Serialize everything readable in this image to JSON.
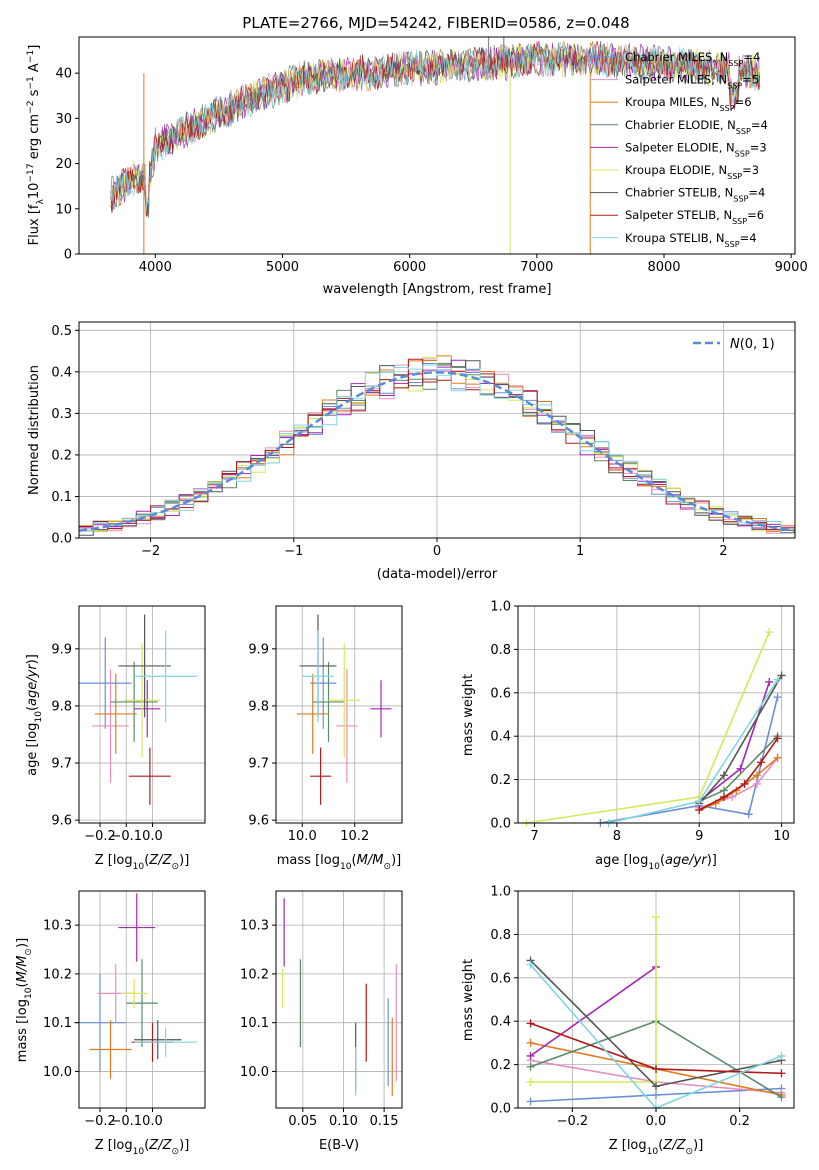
{
  "figure": {
    "title": "PLATE=2766, MJD=54242, FIBERID=0586, z=0.048"
  },
  "colors": {
    "Chabrier MILES": "#6b8fd6",
    "Salpeter MILES": "#e58fc0",
    "Kroupa MILES": "#e07a1f",
    "Chabrier ELODIE": "#5b8c6a",
    "Salpeter ELODIE": "#a626b5",
    "Kroupa ELODIE": "#d6e85a",
    "Chabrier STELIB": "#555555",
    "Salpeter STELIB": "#b01a1a",
    "Kroupa STELIB": "#7fd6e0",
    "normal": "#5b8ad6"
  },
  "chart_data": [
    {
      "id": "spectrum",
      "type": "line",
      "xlabel": "wavelength [Angstrom, rest frame]",
      "ylabel": "Flux [f_λ10^-17 erg cm^-2 s^-1 A^-1]",
      "xlim": [
        3400,
        9030
      ],
      "ylim": [
        0,
        48
      ],
      "xticks": [
        4000,
        5000,
        6000,
        7000,
        8000,
        9000
      ],
      "yticks": [
        0,
        10,
        20,
        30,
        40
      ],
      "grid": false,
      "legend": "top-right",
      "legend_labels": [
        "Chabrier MILES, N_SSP=4",
        "Salpeter MILES, N_SSP=5",
        "Kroupa MILES, N_SSP=6",
        "Chabrier ELODIE, N_SSP=4",
        "Salpeter ELODIE, N_SSP=3",
        "Kroupa ELODIE, N_SSP=3",
        "Chabrier STELIB, N_SSP=4",
        "Salpeter STELIB, N_SSP=6",
        "Kroupa STELIB, N_SSP=4"
      ],
      "series_keys": [
        "Chabrier MILES",
        "Salpeter MILES",
        "Kroupa MILES",
        "Chabrier ELODIE",
        "Salpeter ELODIE",
        "Kroupa ELODIE",
        "Chabrier STELIB",
        "Salpeter STELIB",
        "Kroupa STELIB"
      ],
      "continuum_x": [
        3650,
        3850,
        3950,
        4000,
        4200,
        4500,
        4800,
        5200,
        5600,
        6000,
        6500,
        7000,
        7500,
        8000,
        8500,
        8750
      ],
      "continuum_y": [
        13,
        17,
        16,
        24,
        27,
        31,
        35,
        39,
        40,
        41,
        42,
        43,
        43,
        42,
        41,
        40
      ]
    },
    {
      "id": "histogram",
      "type": "line",
      "xlabel": "(data-model)/error",
      "ylabel": "Normed distribution",
      "xlim": [
        -2.5,
        2.5
      ],
      "ylim": [
        0,
        0.52
      ],
      "xticks": [
        -2,
        -1,
        0,
        1,
        2
      ],
      "yticks": [
        0.0,
        0.1,
        0.2,
        0.3,
        0.4,
        0.5
      ],
      "grid": true,
      "legend": "top-right",
      "legend_label": "N(0,1)",
      "bin_width": 0.1
    },
    {
      "id": "age-vs-Z",
      "type": "scatter",
      "xlabel": "Z [log10(Z/Z⊙)]",
      "ylabel": "age [log10(age/yr)]",
      "xlim": [
        -0.28,
        0.2
      ],
      "ylim": [
        9.595,
        9.975
      ],
      "xticks": [
        -0.2,
        -0.1,
        0.0
      ],
      "yticks": [
        9.6,
        9.7,
        9.8,
        9.9
      ],
      "grid": true,
      "points": [
        {
          "key": "Chabrier MILES",
          "x": -0.18,
          "xerr": 0.1,
          "y": 9.84,
          "yerr": 0.08
        },
        {
          "key": "Salpeter MILES",
          "x": -0.16,
          "xerr": 0.07,
          "y": 9.765,
          "yerr": 0.1
        },
        {
          "key": "Kroupa MILES",
          "x": -0.14,
          "xerr": 0.08,
          "y": 9.786,
          "yerr": 0.07
        },
        {
          "key": "Chabrier ELODIE",
          "x": -0.07,
          "xerr": 0.09,
          "y": 9.807,
          "yerr": 0.07
        },
        {
          "key": "Salpeter ELODIE",
          "x": -0.02,
          "xerr": 0.05,
          "y": 9.795,
          "yerr": 0.05
        },
        {
          "key": "Kroupa ELODIE",
          "x": -0.04,
          "xerr": 0.07,
          "y": 9.81,
          "yerr": 0.1
        },
        {
          "key": "Chabrier STELIB",
          "x": -0.03,
          "xerr": 0.1,
          "y": 9.87,
          "yerr": 0.09
        },
        {
          "key": "Salpeter STELIB",
          "x": -0.01,
          "xerr": 0.08,
          "y": 9.677,
          "yerr": 0.05
        },
        {
          "key": "Kroupa STELIB",
          "x": 0.05,
          "xerr": 0.12,
          "y": 9.852,
          "yerr": 0.08
        }
      ]
    },
    {
      "id": "age-vs-mass",
      "type": "scatter",
      "xlabel": "mass [log10(M/M⊙)]",
      "ylabel": "",
      "xlim": [
        9.9,
        10.38
      ],
      "ylim": [
        9.595,
        9.975
      ],
      "xticks": [
        10.0,
        10.2
      ],
      "yticks": [
        9.6,
        9.7,
        9.8,
        9.9
      ],
      "grid": true,
      "points": [
        {
          "key": "Chabrier MILES",
          "x": 10.08,
          "xerr": 0.05,
          "y": 9.84,
          "yerr": 0.08
        },
        {
          "key": "Salpeter MILES",
          "x": 10.17,
          "xerr": 0.04,
          "y": 9.765,
          "yerr": 0.1
        },
        {
          "key": "Kroupa MILES",
          "x": 10.04,
          "xerr": 0.06,
          "y": 9.786,
          "yerr": 0.07
        },
        {
          "key": "Chabrier ELODIE",
          "x": 10.1,
          "xerr": 0.06,
          "y": 9.807,
          "yerr": 0.07
        },
        {
          "key": "Salpeter ELODIE",
          "x": 10.3,
          "xerr": 0.04,
          "y": 9.795,
          "yerr": 0.05
        },
        {
          "key": "Kroupa ELODIE",
          "x": 10.16,
          "xerr": 0.06,
          "y": 9.81,
          "yerr": 0.1
        },
        {
          "key": "Chabrier STELIB",
          "x": 10.06,
          "xerr": 0.07,
          "y": 9.87,
          "yerr": 0.09
        },
        {
          "key": "Salpeter STELIB",
          "x": 10.07,
          "xerr": 0.04,
          "y": 9.677,
          "yerr": 0.05
        },
        {
          "key": "Kroupa STELIB",
          "x": 10.06,
          "xerr": 0.06,
          "y": 9.852,
          "yerr": 0.08
        }
      ]
    },
    {
      "id": "massweight-vs-age",
      "type": "line",
      "xlabel": "age [log10(age/yr)]",
      "ylabel": "mass weight",
      "xlim": [
        6.8,
        10.15
      ],
      "ylim": [
        0,
        1.0
      ],
      "xticks": [
        7,
        8,
        9,
        10
      ],
      "yticks": [
        0.0,
        0.2,
        0.4,
        0.6,
        0.8,
        1.0
      ],
      "grid": true,
      "series": [
        {
          "key": "Chabrier MILES",
          "x": [
            7.8,
            9.0,
            9.6,
            9.95
          ],
          "y": [
            0.0,
            0.08,
            0.04,
            0.58
          ]
        },
        {
          "key": "Salpeter MILES",
          "x": [
            9.0,
            9.4,
            9.7,
            9.95
          ],
          "y": [
            0.07,
            0.12,
            0.18,
            0.3
          ]
        },
        {
          "key": "Kroupa MILES",
          "x": [
            9.0,
            9.2,
            9.45,
            9.7,
            9.95
          ],
          "y": [
            0.06,
            0.09,
            0.15,
            0.22,
            0.3
          ]
        },
        {
          "key": "Chabrier ELODIE",
          "x": [
            9.0,
            9.3,
            9.95
          ],
          "y": [
            0.1,
            0.15,
            0.4
          ]
        },
        {
          "key": "Salpeter ELODIE",
          "x": [
            9.0,
            9.5,
            9.85
          ],
          "y": [
            0.1,
            0.25,
            0.65
          ]
        },
        {
          "key": "Kroupa ELODIE",
          "x": [
            6.9,
            9.0,
            9.85
          ],
          "y": [
            0.0,
            0.12,
            0.88
          ]
        },
        {
          "key": "Chabrier STELIB",
          "x": [
            9.0,
            9.3,
            10.0
          ],
          "y": [
            0.09,
            0.22,
            0.68
          ]
        },
        {
          "key": "Salpeter STELIB",
          "x": [
            9.0,
            9.3,
            9.55,
            9.75,
            9.95
          ],
          "y": [
            0.06,
            0.12,
            0.18,
            0.28,
            0.39
          ]
        },
        {
          "key": "Kroupa STELIB",
          "x": [
            7.9,
            9.0,
            9.95
          ],
          "y": [
            0.0,
            0.1,
            0.66
          ]
        }
      ]
    },
    {
      "id": "mass-vs-Z",
      "type": "scatter",
      "xlabel": "Z [log10(Z/Z⊙)]",
      "ylabel": "mass [log10(M/M⊙)]",
      "xlim": [
        -0.28,
        0.2
      ],
      "ylim": [
        9.925,
        10.37
      ],
      "xticks": [
        -0.2,
        -0.1,
        0.0
      ],
      "yticks": [
        10.0,
        10.1,
        10.2,
        10.3
      ],
      "grid": true,
      "points": [
        {
          "key": "Chabrier MILES",
          "x": -0.2,
          "xerr": 0.1,
          "y": 10.1,
          "yerr": 0.1
        },
        {
          "key": "Salpeter MILES",
          "x": -0.14,
          "xerr": 0.07,
          "y": 10.16,
          "yerr": 0.06
        },
        {
          "key": "Kroupa MILES",
          "x": -0.16,
          "xerr": 0.08,
          "y": 10.045,
          "yerr": 0.06
        },
        {
          "key": "Chabrier ELODIE",
          "x": -0.04,
          "xerr": 0.06,
          "y": 10.14,
          "yerr": 0.09
        },
        {
          "key": "Salpeter ELODIE",
          "x": -0.06,
          "xerr": 0.07,
          "y": 10.295,
          "yerr": 0.07
        },
        {
          "key": "Kroupa ELODIE",
          "x": -0.07,
          "xerr": 0.05,
          "y": 10.16,
          "yerr": 0.03
        },
        {
          "key": "Chabrier STELIB",
          "x": 0.02,
          "xerr": 0.09,
          "y": 10.065,
          "yerr": 0.04
        },
        {
          "key": "Salpeter STELIB",
          "x": 0.0,
          "xerr": 0.08,
          "y": 10.06,
          "yerr": 0.04
        },
        {
          "key": "Kroupa STELIB",
          "x": 0.05,
          "xerr": 0.12,
          "y": 10.06,
          "yerr": 0.03
        }
      ]
    },
    {
      "id": "mass-vs-EBV",
      "type": "scatter",
      "xlabel": "E(B-V)",
      "ylabel": "",
      "xlim": [
        0.017,
        0.172
      ],
      "ylim": [
        9.925,
        10.37
      ],
      "xticks": [
        0.05,
        0.1,
        0.15
      ],
      "yticks": [
        10.0,
        10.1,
        10.2,
        10.3
      ],
      "grid": true,
      "points": [
        {
          "key": "Chabrier MILES",
          "x": 0.155,
          "xerr": 0,
          "y": 10.06,
          "yerr": 0.09
        },
        {
          "key": "Salpeter MILES",
          "x": 0.165,
          "xerr": 0,
          "y": 10.1,
          "yerr": 0.12
        },
        {
          "key": "Kroupa MILES",
          "x": 0.16,
          "xerr": 0,
          "y": 10.03,
          "yerr": 0.08
        },
        {
          "key": "Chabrier ELODIE",
          "x": 0.047,
          "xerr": 0,
          "y": 10.14,
          "yerr": 0.09
        },
        {
          "key": "Salpeter ELODIE",
          "x": 0.027,
          "xerr": 0,
          "y": 10.285,
          "yerr": 0.07
        },
        {
          "key": "Kroupa ELODIE",
          "x": 0.025,
          "xerr": 0,
          "y": 10.17,
          "yerr": 0.04
        },
        {
          "key": "Chabrier STELIB",
          "x": 0.115,
          "xerr": 0,
          "y": 10.03,
          "yerr": 0.07
        },
        {
          "key": "Salpeter STELIB",
          "x": 0.128,
          "xerr": 0,
          "y": 10.1,
          "yerr": 0.08
        },
        {
          "key": "Kroupa STELIB",
          "x": 0.115,
          "xerr": 0,
          "y": 10.0,
          "yerr": 0.05
        }
      ]
    },
    {
      "id": "massweight-vs-Z",
      "type": "line",
      "xlabel": "Z [log10(Z/Z⊙)]",
      "ylabel": "mass weight",
      "xlim": [
        -0.33,
        0.33
      ],
      "ylim": [
        0,
        1.0
      ],
      "xticks": [
        -0.2,
        0.0,
        0.2
      ],
      "yticks": [
        0.0,
        0.2,
        0.4,
        0.6,
        0.8,
        1.0
      ],
      "grid": true,
      "series": [
        {
          "key": "Chabrier MILES",
          "x": [
            -0.3,
            0.0,
            0.3
          ],
          "y": [
            0.03,
            0.06,
            0.09
          ]
        },
        {
          "key": "Salpeter MILES",
          "x": [
            -0.3,
            0.0,
            0.3
          ],
          "y": [
            0.22,
            0.12,
            0.07
          ]
        },
        {
          "key": "Kroupa MILES",
          "x": [
            -0.3,
            0.3
          ],
          "y": [
            0.3,
            0.06
          ]
        },
        {
          "key": "Chabrier ELODIE",
          "x": [
            -0.3,
            0.0,
            0.3
          ],
          "y": [
            0.19,
            0.4,
            0.05
          ]
        },
        {
          "key": "Salpeter ELODIE",
          "x": [
            -0.3,
            0.0
          ],
          "y": [
            0.24,
            0.65
          ]
        },
        {
          "key": "Kroupa ELODIE",
          "x": [
            -0.3,
            0.0,
            0.0
          ],
          "y": [
            0.12,
            0.12,
            0.88
          ]
        },
        {
          "key": "Chabrier STELIB",
          "x": [
            -0.3,
            0.0,
            0.3
          ],
          "y": [
            0.68,
            0.1,
            0.22
          ]
        },
        {
          "key": "Salpeter STELIB",
          "x": [
            -0.3,
            0.0,
            0.3
          ],
          "y": [
            0.39,
            0.18,
            0.16
          ]
        },
        {
          "key": "Kroupa STELIB",
          "x": [
            -0.3,
            0.0,
            0.3
          ],
          "y": [
            0.66,
            0.0,
            0.24
          ]
        }
      ]
    }
  ]
}
